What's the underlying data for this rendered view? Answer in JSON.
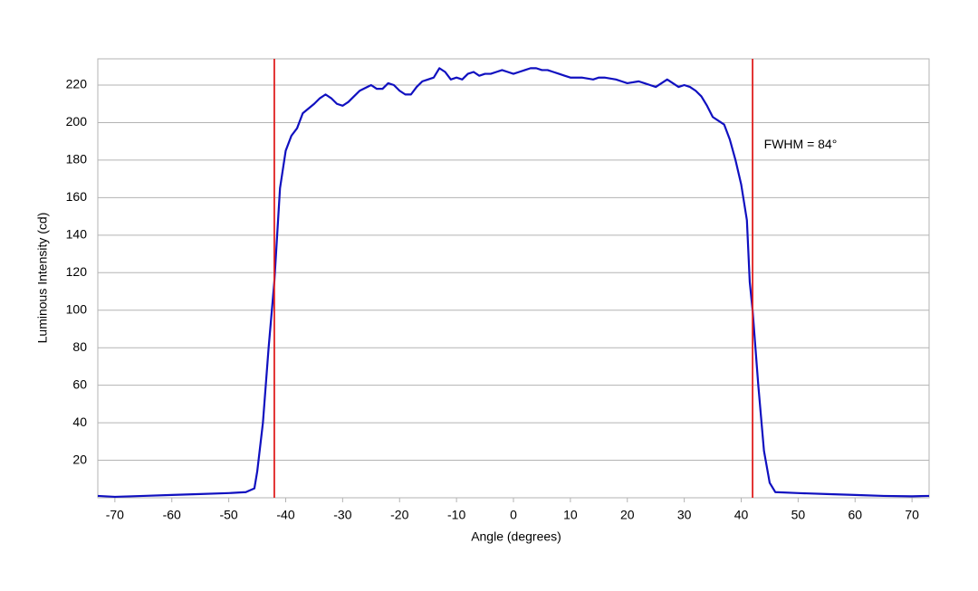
{
  "chart_data": {
    "type": "line",
    "x_label": "Angle (degrees)",
    "y_label": "Luminous Intensity (cd)",
    "x": [
      -73,
      -70,
      -65,
      -60,
      -55,
      -50,
      -47,
      -45.5,
      -45,
      -44,
      -43,
      -42,
      -41.5,
      -41,
      -40,
      -39,
      -38,
      -37,
      -35,
      -34,
      -33,
      -32,
      -31,
      -30,
      -29,
      -28,
      -27,
      -25,
      -24,
      -23,
      -22,
      -21,
      -20,
      -19,
      -18,
      -17,
      -16,
      -15,
      -14,
      -13,
      -12,
      -11,
      -10,
      -9,
      -8,
      -7,
      -6,
      -5,
      -4,
      -3,
      -2,
      -1,
      0,
      1,
      2,
      3,
      4,
      5,
      6,
      7,
      8,
      9,
      10,
      12,
      14,
      15,
      16,
      18,
      19,
      20,
      22,
      23,
      24,
      25,
      26,
      27,
      28,
      29,
      30,
      31,
      32,
      33,
      34,
      35,
      36,
      37,
      38,
      39,
      40,
      41,
      41.5,
      42,
      43,
      44,
      45,
      46,
      50,
      55,
      60,
      65,
      70,
      73
    ],
    "series": [
      {
        "color": "#1010c0",
        "values": [
          1,
          0.5,
          1,
          1.5,
          2,
          2.5,
          3,
          5,
          14,
          40,
          80,
          115,
          140,
          165,
          185,
          193,
          197,
          205,
          210,
          213,
          215,
          213,
          210,
          209,
          211,
          214,
          217,
          220,
          218,
          218,
          221,
          220,
          217,
          215,
          215,
          219,
          222,
          223,
          224,
          229,
          227,
          223,
          224,
          223,
          226,
          227,
          225,
          226,
          226,
          227,
          228,
          227,
          226,
          227,
          228,
          229,
          229,
          228,
          228,
          227,
          226,
          225,
          224,
          224,
          223,
          224,
          224,
          223,
          222,
          221,
          222,
          221,
          220,
          219,
          221,
          223,
          221,
          219,
          220,
          219,
          217,
          214,
          209,
          203,
          201,
          199,
          191,
          180,
          167,
          148,
          115,
          100,
          60,
          25,
          8,
          3,
          2.5,
          2,
          1.5,
          1,
          0.8,
          1
        ]
      }
    ],
    "xlim": [
      -73,
      73
    ],
    "ylim": [
      0,
      234
    ],
    "xticks": [
      -70,
      -60,
      -50,
      -40,
      -30,
      -20,
      -10,
      0,
      10,
      20,
      30,
      40,
      50,
      60,
      70
    ],
    "yticks": [
      20,
      40,
      60,
      80,
      100,
      120,
      140,
      160,
      180,
      200,
      220
    ],
    "grid": true,
    "vlines": {
      "color": "#e02020",
      "values": [
        -42,
        42
      ]
    },
    "annotation": {
      "text": "FWHM = 84°",
      "x": 44,
      "y": 188
    }
  }
}
